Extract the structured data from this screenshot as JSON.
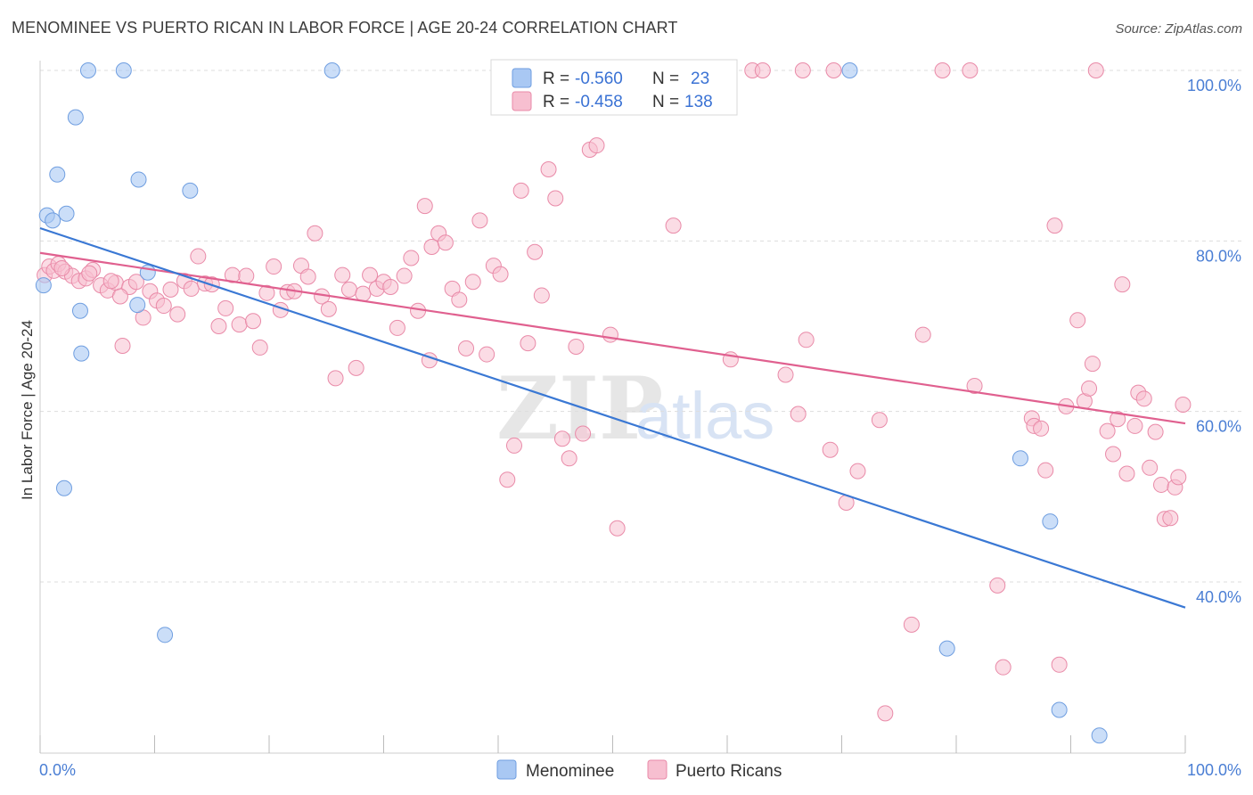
{
  "title": "MENOMINEE VS PUERTO RICAN IN LABOR FORCE | AGE 20-24 CORRELATION CHART",
  "source": "Source: ZipAtlas.com",
  "watermark": {
    "zip": "ZIP",
    "atlas": "atlas"
  },
  "colors": {
    "blue_fill": "#a9c8f3",
    "blue_stroke": "#6f9ee0",
    "blue_line": "#3a78d4",
    "pink_fill": "#f7bfd0",
    "pink_stroke": "#e98aa8",
    "pink_line": "#e0608f",
    "tick_text": "#4a7ed4",
    "grid": "#dddddd"
  },
  "legend": {
    "r_label": "R =",
    "n_label": "N =",
    "rows": [
      {
        "series": "Menominee",
        "r": "-0.560",
        "n": "23"
      },
      {
        "series": "Puerto Ricans",
        "r": "-0.458",
        "n": "138"
      }
    ]
  },
  "chart_data": {
    "type": "scatter",
    "title": "MENOMINEE VS PUERTO RICAN IN LABOR FORCE | AGE 20-24 CORRELATION CHART",
    "xlabel": "",
    "ylabel": "In Labor Force | Age 20-24",
    "xlim": [
      0,
      100
    ],
    "ylim": [
      20,
      102
    ],
    "x_tick_labels": [
      "0.0%",
      "100.0%"
    ],
    "y_ticks": [
      40,
      60,
      80,
      100
    ],
    "y_tick_labels": [
      "40.0%",
      "60.0%",
      "80.0%",
      "100.0%"
    ],
    "grid": "horizontal dashed",
    "legend_position": "top-center",
    "series": [
      {
        "name": "Menominee",
        "r": -0.56,
        "n": 23,
        "trend": {
          "x": [
            0,
            100
          ],
          "y": [
            81.5,
            37.0
          ]
        },
        "points": [
          [
            0.3,
            74.8
          ],
          [
            0.6,
            83.0
          ],
          [
            1.1,
            82.4
          ],
          [
            1.5,
            87.8
          ],
          [
            2.3,
            83.2
          ],
          [
            3.1,
            94.5
          ],
          [
            3.5,
            71.8
          ],
          [
            3.6,
            66.8
          ],
          [
            4.2,
            100.0
          ],
          [
            7.3,
            100.0
          ],
          [
            8.5,
            72.5
          ],
          [
            8.6,
            87.2
          ],
          [
            9.4,
            76.3
          ],
          [
            10.9,
            33.8
          ],
          [
            13.1,
            85.9
          ],
          [
            25.5,
            100.0
          ],
          [
            70.7,
            100.0
          ],
          [
            79.2,
            32.2
          ],
          [
            85.6,
            54.5
          ],
          [
            88.2,
            47.1
          ],
          [
            89.0,
            25.0
          ],
          [
            92.5,
            22.0
          ],
          [
            2.1,
            51.0
          ]
        ]
      },
      {
        "name": "Puerto Ricans",
        "r": -0.458,
        "n": 138,
        "trend": {
          "x": [
            0,
            100
          ],
          "y": [
            78.6,
            58.6
          ]
        },
        "points": [
          [
            0.4,
            76.0
          ],
          [
            0.8,
            77.0
          ],
          [
            1.2,
            76.5
          ],
          [
            1.6,
            77.3
          ],
          [
            2.2,
            76.4
          ],
          [
            2.8,
            75.9
          ],
          [
            3.4,
            75.3
          ],
          [
            4.0,
            75.6
          ],
          [
            4.6,
            76.6
          ],
          [
            5.3,
            74.8
          ],
          [
            5.9,
            74.2
          ],
          [
            6.6,
            75.1
          ],
          [
            7.2,
            67.7
          ],
          [
            7.8,
            74.6
          ],
          [
            8.4,
            75.2
          ],
          [
            9.0,
            71.0
          ],
          [
            9.6,
            74.1
          ],
          [
            10.2,
            73.0
          ],
          [
            10.8,
            72.4
          ],
          [
            11.4,
            74.3
          ],
          [
            12.0,
            71.4
          ],
          [
            12.6,
            75.3
          ],
          [
            13.2,
            74.4
          ],
          [
            13.8,
            78.2
          ],
          [
            14.4,
            75.0
          ],
          [
            15.0,
            74.9
          ],
          [
            15.6,
            70.0
          ],
          [
            16.2,
            72.1
          ],
          [
            16.8,
            76.0
          ],
          [
            17.4,
            70.2
          ],
          [
            18.0,
            75.9
          ],
          [
            18.6,
            70.6
          ],
          [
            19.2,
            67.5
          ],
          [
            19.8,
            73.9
          ],
          [
            20.4,
            77.0
          ],
          [
            21.0,
            71.9
          ],
          [
            21.6,
            74.0
          ],
          [
            22.2,
            74.1
          ],
          [
            22.8,
            77.1
          ],
          [
            23.4,
            75.8
          ],
          [
            24.0,
            80.9
          ],
          [
            24.6,
            73.5
          ],
          [
            25.2,
            72.0
          ],
          [
            25.8,
            63.9
          ],
          [
            26.4,
            76.0
          ],
          [
            27.0,
            74.3
          ],
          [
            27.6,
            65.1
          ],
          [
            28.2,
            73.8
          ],
          [
            28.8,
            76.0
          ],
          [
            29.4,
            74.4
          ],
          [
            30.0,
            75.2
          ],
          [
            30.6,
            74.6
          ],
          [
            31.2,
            69.8
          ],
          [
            31.8,
            75.9
          ],
          [
            32.4,
            78.0
          ],
          [
            33.0,
            71.8
          ],
          [
            33.6,
            84.1
          ],
          [
            34.2,
            79.3
          ],
          [
            34.8,
            80.9
          ],
          [
            35.4,
            79.8
          ],
          [
            36.0,
            74.4
          ],
          [
            36.6,
            73.1
          ],
          [
            37.2,
            67.4
          ],
          [
            37.8,
            75.2
          ],
          [
            38.4,
            82.4
          ],
          [
            39.0,
            66.7
          ],
          [
            39.6,
            77.1
          ],
          [
            40.2,
            76.1
          ],
          [
            40.8,
            52.0
          ],
          [
            41.4,
            56.0
          ],
          [
            42.0,
            85.9
          ],
          [
            42.6,
            68.0
          ],
          [
            43.2,
            78.7
          ],
          [
            43.8,
            73.6
          ],
          [
            44.4,
            88.4
          ],
          [
            45.0,
            85.0
          ],
          [
            45.6,
            56.8
          ],
          [
            46.2,
            54.5
          ],
          [
            46.8,
            67.6
          ],
          [
            47.4,
            57.4
          ],
          [
            48.0,
            90.7
          ],
          [
            48.6,
            91.2
          ],
          [
            49.2,
            100.0
          ],
          [
            49.8,
            69.0
          ],
          [
            50.4,
            46.3
          ],
          [
            51.0,
            100.0
          ],
          [
            51.6,
            100.0
          ],
          [
            52.2,
            100.0
          ],
          [
            55.3,
            81.8
          ],
          [
            60.3,
            66.1
          ],
          [
            62.2,
            100.0
          ],
          [
            63.1,
            100.0
          ],
          [
            65.1,
            64.3
          ],
          [
            66.6,
            100.0
          ],
          [
            66.2,
            59.7
          ],
          [
            66.9,
            68.4
          ],
          [
            69.0,
            55.5
          ],
          [
            69.3,
            100.0
          ],
          [
            70.4,
            49.3
          ],
          [
            71.4,
            53.0
          ],
          [
            73.3,
            59.0
          ],
          [
            76.1,
            35.0
          ],
          [
            77.1,
            69.0
          ],
          [
            81.2,
            100.0
          ],
          [
            81.6,
            63.0
          ],
          [
            83.6,
            39.6
          ],
          [
            84.1,
            30.0
          ],
          [
            86.6,
            59.2
          ],
          [
            86.8,
            58.3
          ],
          [
            87.4,
            58.0
          ],
          [
            87.8,
            53.1
          ],
          [
            88.6,
            81.8
          ],
          [
            89.0,
            30.3
          ],
          [
            89.6,
            60.6
          ],
          [
            90.6,
            70.7
          ],
          [
            91.2,
            61.2
          ],
          [
            91.6,
            62.7
          ],
          [
            91.9,
            65.6
          ],
          [
            92.2,
            100.0
          ],
          [
            93.2,
            57.7
          ],
          [
            93.7,
            55.0
          ],
          [
            94.1,
            59.1
          ],
          [
            94.5,
            74.9
          ],
          [
            94.9,
            52.7
          ],
          [
            95.6,
            58.3
          ],
          [
            95.9,
            62.2
          ],
          [
            96.4,
            61.5
          ],
          [
            96.9,
            53.4
          ],
          [
            97.4,
            57.6
          ],
          [
            97.9,
            51.4
          ],
          [
            98.2,
            47.4
          ],
          [
            98.7,
            47.5
          ],
          [
            99.1,
            51.1
          ],
          [
            99.4,
            52.3
          ],
          [
            99.8,
            60.8
          ],
          [
            1.9,
            76.8
          ],
          [
            4.3,
            76.2
          ],
          [
            6.2,
            75.3
          ],
          [
            7.0,
            73.5
          ],
          [
            57.9,
            100.0
          ],
          [
            78.8,
            100.0
          ],
          [
            34.0,
            66.0
          ],
          [
            73.8,
            24.6
          ]
        ]
      }
    ]
  }
}
